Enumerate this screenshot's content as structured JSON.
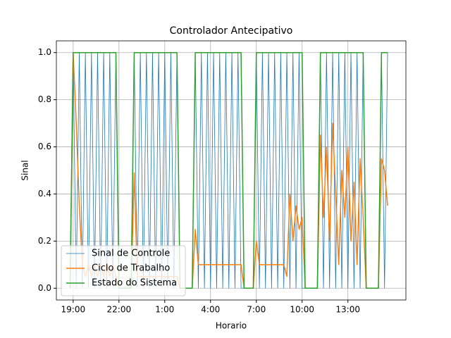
{
  "chart_data": {
    "type": "line",
    "title": "Controlador Antecipativo",
    "x_label": "Horario",
    "y_label": "Sinal",
    "x": [
      18.8,
      19,
      19.2,
      19.4,
      19.6,
      19.8,
      20,
      20.2,
      20.4,
      20.6,
      20.8,
      21,
      21.2,
      21.4,
      21.6,
      21.8,
      22,
      22.2,
      22.4,
      22.6,
      22.8,
      23,
      23.2,
      23.4,
      23.6,
      23.8,
      24,
      24.2,
      24.4,
      24.6,
      24.8,
      25,
      25.2,
      25.4,
      25.6,
      25.8,
      26,
      26.2,
      26.4,
      26.6,
      26.8,
      27,
      27.2,
      27.4,
      27.6,
      27.8,
      28,
      28.2,
      28.4,
      28.6,
      28.8,
      29,
      29.2,
      29.4,
      29.6,
      29.8,
      30,
      30.2,
      30.4,
      30.6,
      30.8,
      31,
      31.2,
      31.4,
      31.6,
      31.8,
      32,
      32.2,
      32.4,
      32.6,
      32.8,
      33,
      33.2,
      33.4,
      33.6,
      33.8,
      34,
      34.2,
      34.4,
      34.6,
      34.8,
      35,
      35.2,
      35.4,
      35.6,
      35.8,
      36,
      36.2,
      36.4,
      36.6,
      36.8,
      37,
      37.2,
      37.4,
      37.6,
      37.8,
      38,
      38.2,
      38.4,
      38.6,
      38.8,
      39,
      39.2,
      39.4,
      39.6
    ],
    "series": [
      {
        "name": "Sinal de Controle",
        "color": "#1f77b4",
        "width": 0.8,
        "values": [
          0,
          1,
          0,
          1,
          0,
          1,
          0,
          1,
          0,
          1,
          0,
          1,
          0,
          1,
          0,
          1,
          0,
          0,
          0,
          0,
          0,
          1,
          0,
          1,
          0,
          1,
          0,
          1,
          0,
          1,
          0,
          1,
          0,
          1,
          0,
          1,
          0,
          0,
          0,
          0,
          0,
          1,
          0,
          1,
          0,
          1,
          0,
          1,
          0,
          1,
          0,
          1,
          0,
          1,
          0,
          1,
          0,
          0,
          0,
          0,
          0,
          1,
          0,
          1,
          0,
          1,
          0,
          1,
          0,
          1,
          0,
          1,
          0,
          1,
          0,
          1,
          0,
          0,
          0,
          0,
          0,
          0,
          1,
          0,
          1,
          0,
          1,
          0,
          1,
          0,
          1,
          0,
          1,
          0,
          1,
          0,
          1,
          0,
          0,
          0,
          0,
          0,
          1,
          0,
          1
        ]
      },
      {
        "name": "Ciclo de Trabalho",
        "color": "#ff7f0e",
        "width": 1.5,
        "values": [
          0,
          1.0,
          0.7,
          0.35,
          0.1,
          0.05,
          0.1,
          0.05,
          0.1,
          0.05,
          0.1,
          0.05,
          0.1,
          0.05,
          0.1,
          0.05,
          0,
          0,
          0,
          0,
          0,
          0.49,
          0.05,
          0.05,
          0.05,
          0.05,
          0.05,
          0.05,
          0.05,
          0.05,
          0.05,
          0.05,
          0.05,
          0.05,
          0.05,
          0.05,
          0,
          0,
          0,
          0,
          0,
          0.25,
          0.1,
          0.1,
          0.1,
          0.1,
          0.1,
          0.1,
          0.1,
          0.1,
          0.1,
          0.1,
          0.1,
          0.1,
          0.1,
          0.1,
          0.1,
          0,
          0,
          0,
          0,
          0.2,
          0.1,
          0.1,
          0.1,
          0.1,
          0.1,
          0.1,
          0.1,
          0.1,
          0.1,
          0.05,
          0.4,
          0.2,
          0.35,
          0.25,
          0.3,
          0,
          0,
          0,
          0,
          0,
          0.65,
          0.3,
          0.6,
          0.2,
          0.7,
          0.4,
          0.1,
          0.5,
          0.3,
          0.6,
          0.2,
          0.45,
          0.1,
          0.55,
          0.3,
          0,
          0,
          0,
          0,
          0,
          0.55,
          0.5,
          0.35
        ]
      },
      {
        "name": "Estado do Sistema",
        "color": "#2ca02c",
        "width": 1.5,
        "values": [
          0,
          1,
          1,
          1,
          1,
          1,
          1,
          1,
          1,
          1,
          1,
          1,
          1,
          1,
          1,
          1,
          0,
          0,
          0,
          0,
          0,
          1,
          1,
          1,
          1,
          1,
          1,
          1,
          1,
          1,
          1,
          1,
          1,
          1,
          1,
          1,
          0,
          0,
          0,
          0,
          0,
          1,
          1,
          1,
          1,
          1,
          1,
          1,
          1,
          1,
          1,
          1,
          1,
          1,
          1,
          1,
          1,
          0,
          0,
          0,
          0,
          1,
          1,
          1,
          1,
          1,
          1,
          1,
          1,
          1,
          1,
          1,
          1,
          1,
          1,
          1,
          1,
          0,
          0,
          0,
          0,
          0,
          1,
          1,
          1,
          1,
          1,
          1,
          1,
          1,
          1,
          1,
          1,
          1,
          1,
          1,
          1,
          0,
          0,
          0,
          0,
          0,
          1,
          1,
          1
        ]
      }
    ],
    "xlim": [
      17.9,
      40.8
    ],
    "ylim": [
      -0.05,
      1.05
    ],
    "xticks": [
      {
        "value": 19,
        "label": "19:00"
      },
      {
        "value": 22,
        "label": "22:00"
      },
      {
        "value": 25,
        "label": "1:00"
      },
      {
        "value": 28,
        "label": "4:00"
      },
      {
        "value": 31,
        "label": "7:00"
      },
      {
        "value": 34,
        "label": "10:00"
      },
      {
        "value": 37,
        "label": "13:00"
      }
    ],
    "yticks": [
      {
        "value": 0,
        "label": "0.0"
      },
      0.2,
      0.4,
      0.6,
      0.8,
      {
        "value": 1,
        "label": "1.0"
      }
    ],
    "grid": true,
    "legend": "lower left"
  }
}
